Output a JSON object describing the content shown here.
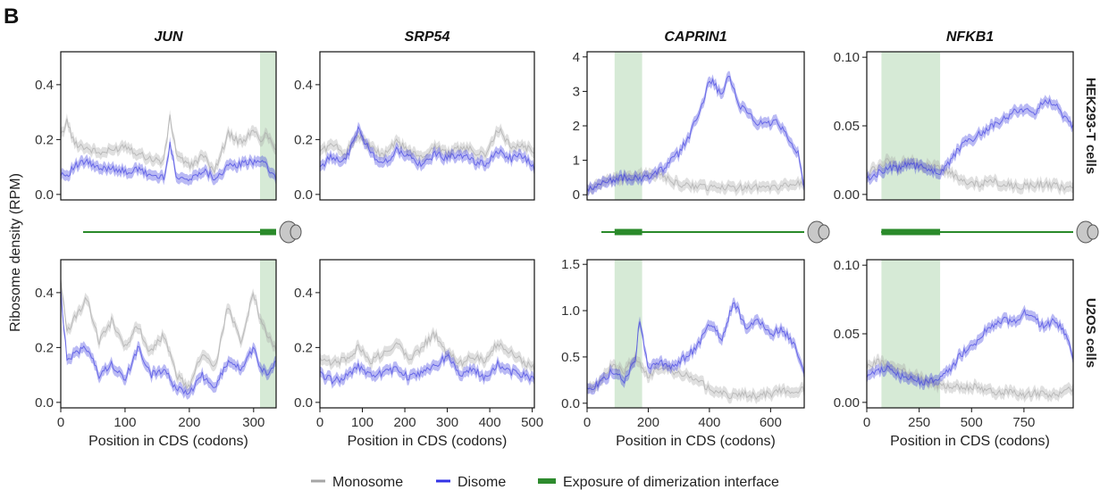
{
  "panel_label": "B",
  "y_axis_label": "Ribosome density (RPM)",
  "row_labels": [
    "HEK293-T cells",
    "U2OS cells"
  ],
  "x_axis_label": "Position in CDS (codons)",
  "legend": {
    "items": [
      {
        "label": "Monosome",
        "color": "#a6a6a6"
      },
      {
        "label": "Disome",
        "color": "#3333e6"
      },
      {
        "label": "Exposure of dimerization interface",
        "color": "#2e8b2e"
      }
    ]
  },
  "colors": {
    "monosome": "#a6a6a6",
    "disome": "#3a3ae0",
    "interface": "#d6ead6",
    "interface_bar": "#2a8a2a",
    "ribosome": "#c8c8c8"
  },
  "chart_data": [
    {
      "type": "line",
      "gene": "JUN",
      "title": "JUN",
      "cell_line": "HEK293-T cells",
      "xlim": [
        0,
        335
      ],
      "ylim": [
        -0.02,
        0.52
      ],
      "yticks": [
        0.0,
        0.2,
        0.4
      ],
      "ytick_labels": [
        "0.0",
        "0.2",
        "0.4"
      ],
      "xticks": [],
      "xtick_labels": [],
      "highlight": [
        310,
        335
      ],
      "series": [
        {
          "name": "Monosome",
          "x": [
            0,
            10,
            20,
            40,
            60,
            80,
            100,
            120,
            140,
            160,
            170,
            180,
            200,
            220,
            240,
            260,
            280,
            300,
            310,
            320,
            335
          ],
          "y": [
            0.21,
            0.27,
            0.19,
            0.17,
            0.15,
            0.16,
            0.18,
            0.15,
            0.13,
            0.12,
            0.28,
            0.15,
            0.1,
            0.14,
            0.09,
            0.22,
            0.19,
            0.23,
            0.2,
            0.22,
            0.17
          ]
        },
        {
          "name": "Disome",
          "x": [
            0,
            10,
            20,
            40,
            60,
            80,
            100,
            120,
            140,
            160,
            170,
            180,
            200,
            220,
            240,
            260,
            280,
            300,
            310,
            320,
            335
          ],
          "y": [
            0.08,
            0.07,
            0.1,
            0.12,
            0.09,
            0.1,
            0.08,
            0.09,
            0.07,
            0.06,
            0.18,
            0.07,
            0.05,
            0.09,
            0.06,
            0.1,
            0.11,
            0.12,
            0.13,
            0.1,
            0.06
          ]
        }
      ]
    },
    {
      "type": "line",
      "gene": "SRP54",
      "title": "SRP54",
      "cell_line": "HEK293-T cells",
      "xlim": [
        0,
        505
      ],
      "ylim": [
        -0.02,
        0.52
      ],
      "yticks": [
        0.0,
        0.2,
        0.4
      ],
      "ytick_labels": [
        "0.0",
        "0.2",
        "0.4"
      ],
      "xticks": [],
      "xtick_labels": [],
      "highlight": null,
      "series": [
        {
          "name": "Monosome",
          "x": [
            0,
            30,
            60,
            90,
            120,
            150,
            180,
            210,
            240,
            270,
            300,
            330,
            360,
            390,
            420,
            450,
            480,
            505
          ],
          "y": [
            0.16,
            0.18,
            0.15,
            0.22,
            0.17,
            0.14,
            0.19,
            0.16,
            0.13,
            0.18,
            0.15,
            0.17,
            0.16,
            0.14,
            0.24,
            0.17,
            0.18,
            0.15
          ]
        },
        {
          "name": "Disome",
          "x": [
            0,
            30,
            60,
            90,
            120,
            150,
            180,
            210,
            240,
            270,
            300,
            330,
            360,
            390,
            420,
            450,
            480,
            505
          ],
          "y": [
            0.1,
            0.14,
            0.12,
            0.24,
            0.15,
            0.11,
            0.16,
            0.14,
            0.1,
            0.15,
            0.13,
            0.15,
            0.12,
            0.11,
            0.16,
            0.13,
            0.14,
            0.1
          ]
        }
      ]
    },
    {
      "type": "line",
      "gene": "CAPRIN1",
      "title": "CAPRIN1",
      "cell_line": "HEK293-T cells",
      "xlim": [
        0,
        710
      ],
      "ylim": [
        -0.15,
        4.15
      ],
      "yticks": [
        0,
        1,
        2,
        3,
        4
      ],
      "ytick_labels": [
        "0",
        "1",
        "2",
        "3",
        "4"
      ],
      "xticks": [],
      "xtick_labels": [],
      "highlight": [
        90,
        180
      ],
      "series": [
        {
          "name": "Monosome",
          "x": [
            0,
            60,
            120,
            180,
            240,
            300,
            360,
            420,
            480,
            540,
            600,
            660,
            710
          ],
          "y": [
            0.15,
            0.35,
            0.5,
            0.6,
            0.55,
            0.3,
            0.25,
            0.2,
            0.2,
            0.25,
            0.2,
            0.3,
            0.3
          ]
        },
        {
          "name": "Disome",
          "x": [
            0,
            60,
            120,
            180,
            240,
            300,
            340,
            380,
            400,
            440,
            460,
            500,
            540,
            580,
            620,
            660,
            690,
            710
          ],
          "y": [
            0.1,
            0.4,
            0.5,
            0.45,
            0.7,
            1.2,
            1.8,
            2.7,
            3.4,
            2.9,
            3.5,
            2.6,
            2.2,
            2.0,
            2.1,
            1.6,
            1.2,
            0.2
          ]
        }
      ]
    },
    {
      "type": "line",
      "gene": "NFKB1",
      "title": "NFKB1",
      "cell_line": "HEK293-T cells",
      "xlim": [
        0,
        985
      ],
      "ylim": [
        -0.004,
        0.104
      ],
      "yticks": [
        0.0,
        0.05,
        0.1
      ],
      "ytick_labels": [
        "0.00",
        "0.05",
        "0.10"
      ],
      "xticks": [],
      "xtick_labels": [],
      "highlight": [
        70,
        350
      ],
      "series": [
        {
          "name": "Monosome",
          "x": [
            0,
            50,
            100,
            150,
            200,
            250,
            300,
            350,
            400,
            450,
            500,
            550,
            600,
            650,
            700,
            750,
            800,
            850,
            900,
            950,
            985
          ],
          "y": [
            0.015,
            0.02,
            0.025,
            0.02,
            0.025,
            0.022,
            0.02,
            0.02,
            0.015,
            0.01,
            0.008,
            0.008,
            0.01,
            0.007,
            0.006,
            0.006,
            0.007,
            0.008,
            0.006,
            0.005,
            0.004
          ]
        },
        {
          "name": "Disome",
          "x": [
            0,
            50,
            100,
            150,
            200,
            250,
            300,
            350,
            400,
            450,
            500,
            550,
            600,
            650,
            700,
            750,
            800,
            850,
            900,
            950,
            985
          ],
          "y": [
            0.012,
            0.015,
            0.02,
            0.018,
            0.022,
            0.02,
            0.018,
            0.015,
            0.025,
            0.035,
            0.04,
            0.045,
            0.05,
            0.055,
            0.06,
            0.062,
            0.058,
            0.07,
            0.065,
            0.055,
            0.05
          ]
        }
      ]
    },
    {
      "type": "line",
      "gene": "JUN",
      "title": "",
      "cell_line": "U2OS cells",
      "xlim": [
        0,
        335
      ],
      "ylim": [
        -0.02,
        0.52
      ],
      "yticks": [
        0.0,
        0.2,
        0.4
      ],
      "ytick_labels": [
        "0.0",
        "0.2",
        "0.4"
      ],
      "xticks": [
        0,
        100,
        200,
        300
      ],
      "xtick_labels": [
        "0",
        "100",
        "200",
        "300"
      ],
      "highlight": [
        310,
        335
      ],
      "series": [
        {
          "name": "Monosome",
          "x": [
            0,
            10,
            20,
            40,
            60,
            80,
            100,
            120,
            140,
            160,
            180,
            200,
            220,
            240,
            260,
            280,
            300,
            310,
            320,
            335
          ],
          "y": [
            0.45,
            0.25,
            0.3,
            0.38,
            0.22,
            0.3,
            0.2,
            0.28,
            0.18,
            0.25,
            0.1,
            0.05,
            0.18,
            0.12,
            0.35,
            0.22,
            0.4,
            0.3,
            0.25,
            0.2
          ]
        },
        {
          "name": "Disome",
          "x": [
            0,
            10,
            20,
            40,
            60,
            80,
            100,
            120,
            140,
            160,
            180,
            200,
            220,
            240,
            260,
            280,
            300,
            310,
            320,
            335
          ],
          "y": [
            0.4,
            0.15,
            0.18,
            0.2,
            0.1,
            0.14,
            0.08,
            0.2,
            0.1,
            0.12,
            0.05,
            0.03,
            0.1,
            0.05,
            0.15,
            0.12,
            0.2,
            0.13,
            0.1,
            0.15
          ]
        }
      ]
    },
    {
      "type": "line",
      "gene": "SRP54",
      "title": "",
      "cell_line": "U2OS cells",
      "xlim": [
        0,
        505
      ],
      "ylim": [
        -0.02,
        0.52
      ],
      "yticks": [
        0.0,
        0.2,
        0.4
      ],
      "ytick_labels": [
        "0.0",
        "0.2",
        "0.4"
      ],
      "xticks": [
        0,
        100,
        200,
        300,
        400,
        500
      ],
      "xtick_labels": [
        "0",
        "100",
        "200",
        "300",
        "400",
        "500"
      ],
      "highlight": null,
      "series": [
        {
          "name": "Monosome",
          "x": [
            0,
            30,
            60,
            90,
            120,
            150,
            180,
            210,
            240,
            270,
            300,
            330,
            360,
            390,
            420,
            450,
            480,
            505
          ],
          "y": [
            0.15,
            0.14,
            0.16,
            0.2,
            0.15,
            0.18,
            0.22,
            0.16,
            0.2,
            0.25,
            0.18,
            0.14,
            0.17,
            0.15,
            0.22,
            0.18,
            0.15,
            0.12
          ]
        },
        {
          "name": "Disome",
          "x": [
            0,
            30,
            60,
            90,
            120,
            150,
            180,
            210,
            240,
            270,
            300,
            330,
            360,
            390,
            420,
            450,
            480,
            505
          ],
          "y": [
            0.1,
            0.08,
            0.09,
            0.13,
            0.1,
            0.11,
            0.12,
            0.09,
            0.11,
            0.13,
            0.17,
            0.1,
            0.12,
            0.09,
            0.14,
            0.11,
            0.1,
            0.08
          ]
        }
      ]
    },
    {
      "type": "line",
      "gene": "CAPRIN1",
      "title": "",
      "cell_line": "U2OS cells",
      "xlim": [
        0,
        710
      ],
      "ylim": [
        -0.05,
        1.55
      ],
      "yticks": [
        0.0,
        0.5,
        1.0,
        1.5
      ],
      "ytick_labels": [
        "0.0",
        "0.5",
        "1.0",
        "1.5"
      ],
      "xticks": [
        0,
        200,
        400,
        600
      ],
      "xtick_labels": [
        "0",
        "200",
        "400",
        "600"
      ],
      "highlight": [
        90,
        180
      ],
      "series": [
        {
          "name": "Monosome",
          "x": [
            0,
            40,
            80,
            120,
            160,
            200,
            240,
            280,
            320,
            360,
            400,
            440,
            480,
            520,
            560,
            600,
            640,
            680,
            710
          ],
          "y": [
            0.18,
            0.22,
            0.4,
            0.35,
            0.5,
            0.3,
            0.4,
            0.35,
            0.3,
            0.25,
            0.15,
            0.1,
            0.08,
            0.1,
            0.08,
            0.1,
            0.15,
            0.12,
            0.15
          ]
        },
        {
          "name": "Disome",
          "x": [
            0,
            40,
            80,
            120,
            160,
            170,
            200,
            240,
            280,
            320,
            360,
            400,
            440,
            480,
            520,
            560,
            600,
            640,
            680,
            710
          ],
          "y": [
            0.15,
            0.2,
            0.35,
            0.25,
            0.45,
            0.9,
            0.4,
            0.45,
            0.4,
            0.5,
            0.6,
            0.85,
            0.7,
            1.1,
            0.8,
            0.9,
            0.75,
            0.8,
            0.6,
            0.35
          ]
        }
      ]
    },
    {
      "type": "line",
      "gene": "NFKB1",
      "title": "",
      "cell_line": "U2OS cells",
      "xlim": [
        0,
        985
      ],
      "ylim": [
        -0.004,
        0.104
      ],
      "yticks": [
        0.0,
        0.05,
        0.1
      ],
      "ytick_labels": [
        "0.00",
        "0.05",
        "0.10"
      ],
      "xticks": [
        0,
        250,
        500,
        750
      ],
      "xtick_labels": [
        "0",
        "250",
        "500",
        "750"
      ],
      "highlight": [
        70,
        350
      ],
      "series": [
        {
          "name": "Monosome",
          "x": [
            0,
            50,
            100,
            150,
            200,
            250,
            300,
            350,
            400,
            450,
            500,
            550,
            600,
            650,
            700,
            750,
            800,
            850,
            900,
            950,
            985
          ],
          "y": [
            0.025,
            0.03,
            0.028,
            0.025,
            0.02,
            0.018,
            0.015,
            0.012,
            0.012,
            0.01,
            0.012,
            0.01,
            0.008,
            0.008,
            0.007,
            0.006,
            0.007,
            0.006,
            0.005,
            0.008,
            0.01
          ]
        },
        {
          "name": "Disome",
          "x": [
            0,
            50,
            100,
            150,
            200,
            250,
            300,
            350,
            400,
            450,
            500,
            550,
            600,
            650,
            700,
            750,
            800,
            850,
            900,
            950,
            985
          ],
          "y": [
            0.02,
            0.022,
            0.025,
            0.02,
            0.018,
            0.015,
            0.015,
            0.018,
            0.025,
            0.035,
            0.04,
            0.05,
            0.055,
            0.06,
            0.058,
            0.065,
            0.06,
            0.055,
            0.06,
            0.05,
            0.03
          ]
        }
      ]
    }
  ],
  "gene_schematics": [
    {
      "gene": "JUN",
      "interface": [
        310,
        335
      ]
    },
    {
      "gene": "CAPRIN1",
      "interface": [
        90,
        180
      ]
    },
    {
      "gene": "NFKB1",
      "interface": [
        70,
        350
      ]
    }
  ]
}
